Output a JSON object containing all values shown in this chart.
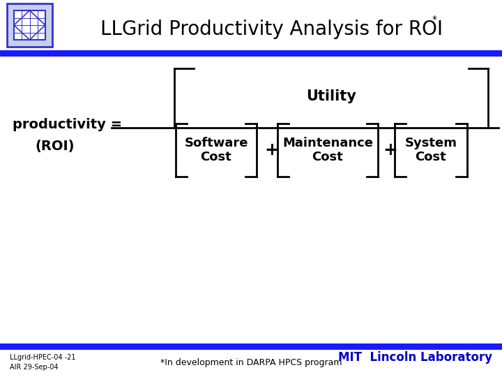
{
  "title": "LLGrid Productivity Analysis for ROI",
  "title_superscript": "*",
  "title_fontsize": 20,
  "title_color": "#000000",
  "background_color": "#ffffff",
  "header_stripe_color": "#1a1aff",
  "productivity_label": "productivity =",
  "roi_label": "(ROI)",
  "utility_label": "Utility",
  "software_label": "Software\nCost",
  "maintenance_label": "Maintenance\nCost",
  "system_label": "System\nCost",
  "plus_sign": "+",
  "footer_left_line1": "LLgrid-HPEC-04 -21",
  "footer_left_line2": "AIR 29-Sep-04",
  "footer_center": "*In development in DARPA HPCS program",
  "footer_right": "MIT  Lincoln Laboratory",
  "footer_stripe_color": "#1a1aff",
  "text_color_blue": "#0000cc",
  "bracket_color": "#000000",
  "label_color": "#000000"
}
